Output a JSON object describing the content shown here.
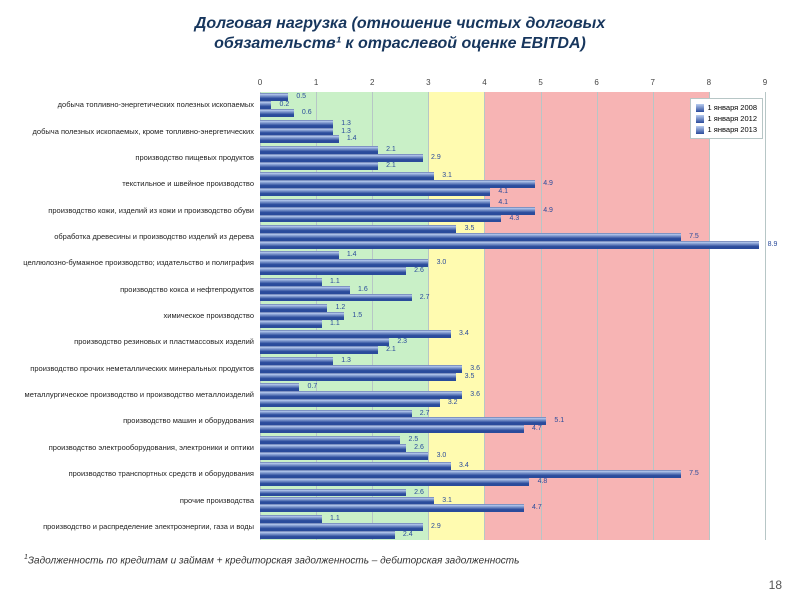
{
  "title_l1": "Долговая нагрузка (отношение чистых долговых",
  "title_l2": "обязательств¹ к отраслевой оценке EBITDA)",
  "title_fontsize": 16,
  "title_color": "#17365d",
  "chart": {
    "type": "bar",
    "orientation": "horizontal",
    "xmin": 0,
    "xmax": 9,
    "xtick_step": 1,
    "xticks": [
      0,
      1,
      2,
      3,
      4,
      5,
      6,
      7,
      8,
      9
    ],
    "zones": [
      {
        "from": 0,
        "to": 3,
        "color": "#c9f0c7"
      },
      {
        "from": 3,
        "to": 4,
        "color": "#fffbb0"
      },
      {
        "from": 4,
        "to": 8,
        "color": "#f7b4b4"
      },
      {
        "from": 8,
        "to": 9,
        "color": "#ffffff"
      }
    ],
    "grid_color": "#b7c6c6",
    "series": [
      {
        "label": "1 января 2008",
        "color_top": "#b9cdf0",
        "color_bot": "#2a4b9b"
      },
      {
        "label": "1 января 2012",
        "color_top": "#b9cdf0",
        "color_bot": "#2a4b9b"
      },
      {
        "label": "1 января 2013",
        "color_top": "#b9cdf0",
        "color_bot": "#2a4b9b"
      }
    ],
    "legend_position": "top-right",
    "label_fontsize": 7.5,
    "value_fontsize": 7,
    "categories": [
      {
        "name": "добыча топливно-энергетических полезных ископаемых",
        "values": [
          0.5,
          0.2,
          0.6
        ]
      },
      {
        "name": "добыча полезных ископаемых, кроме топливно-энергетических",
        "values": [
          1.3,
          1.3,
          1.4
        ]
      },
      {
        "name": "производство пищевых продуктов",
        "values": [
          2.1,
          2.9,
          2.1
        ]
      },
      {
        "name": "текстильное и швейное производство",
        "values": [
          3.1,
          4.9,
          4.1
        ]
      },
      {
        "name": "производство кожи, изделий из кожи и производство обуви",
        "values": [
          4.1,
          4.9,
          4.3
        ]
      },
      {
        "name": "обработка древесины и производство изделий из дерева",
        "values": [
          3.5,
          7.5,
          8.9
        ]
      },
      {
        "name": "целлюлозно-бумажное производство; издательство и полиграфия",
        "values": [
          1.4,
          3.0,
          2.6
        ]
      },
      {
        "name": "производство кокса и нефтепродуктов",
        "values": [
          1.1,
          1.6,
          2.7
        ]
      },
      {
        "name": "химическое производство",
        "values": [
          1.2,
          1.5,
          1.1
        ]
      },
      {
        "name": "производство резиновых и пластмассовых изделий",
        "values": [
          3.4,
          2.3,
          2.1
        ]
      },
      {
        "name": "производство прочих неметаллических минеральных продуктов",
        "values": [
          1.3,
          3.6,
          3.5
        ]
      },
      {
        "name": "металлургическое производство и производство металлоизделий",
        "values": [
          0.7,
          3.6,
          3.2
        ]
      },
      {
        "name": "производство машин и оборудования",
        "values": [
          2.7,
          5.1,
          4.7
        ]
      },
      {
        "name": "производство электрооборудования, электроники и оптики",
        "values": [
          2.5,
          2.6,
          3.0
        ]
      },
      {
        "name": "производство транспортных средств и оборудования",
        "values": [
          3.4,
          7.5,
          4.8
        ]
      },
      {
        "name": "прочие производства",
        "values": [
          2.6,
          3.1,
          4.7
        ]
      },
      {
        "name": "производство и распределение электроэнергии, газа и воды",
        "values": [
          1.1,
          2.9,
          2.4
        ]
      }
    ]
  },
  "footnote": "Задолженность по кредитам и займам + кредиторская задолженность – дебиторская задолженность",
  "footnote_prefix": "1",
  "page_number": "18"
}
